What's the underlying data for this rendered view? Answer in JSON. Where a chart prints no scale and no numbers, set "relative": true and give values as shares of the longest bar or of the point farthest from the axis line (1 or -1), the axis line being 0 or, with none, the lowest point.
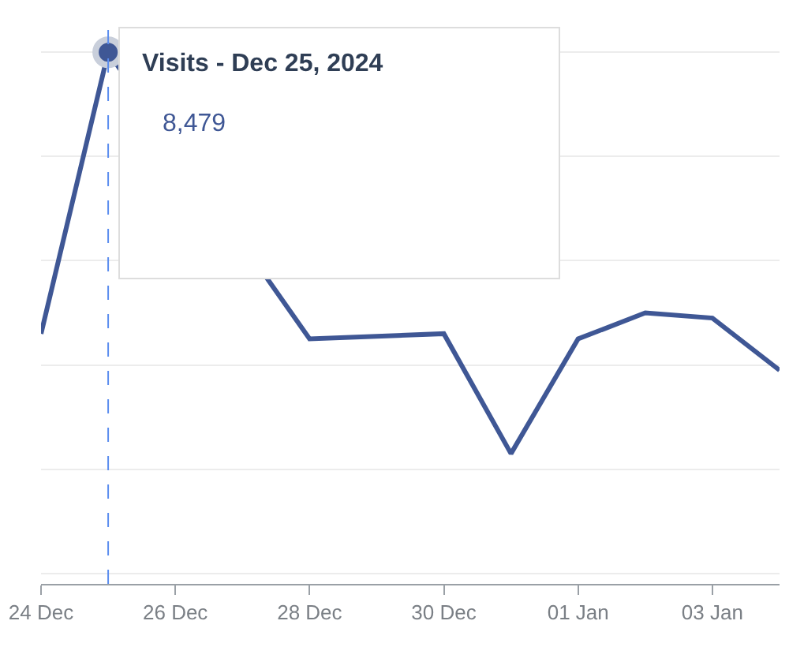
{
  "chart_data": {
    "type": "line",
    "relative": true,
    "x": [
      "2024-12-24",
      "2024-12-25",
      "2024-12-26",
      "2024-12-27",
      "2024-12-28",
      "2024-12-29",
      "2024-12-30",
      "2024-12-31",
      "2025-01-01",
      "2025-01-02",
      "2025-01-03",
      "2025-01-04"
    ],
    "series": [
      {
        "color": "#3f5795",
        "values": [
          0.46,
          1,
          null,
          null,
          0.45,
          null,
          0.46,
          0.23,
          0.45,
          0.5,
          0.49,
          0.39
        ]
      }
    ],
    "xlim": [
      "2024-12-24",
      "2025-01-04"
    ],
    "xticks": [
      {
        "value": "2024-12-24",
        "label": "24 Dec"
      },
      {
        "value": "2024-12-26",
        "label": "26 Dec"
      },
      {
        "value": "2024-12-28",
        "label": "28 Dec"
      },
      {
        "value": "2024-12-30",
        "label": "30 Dec"
      },
      {
        "value": "2025-01-01",
        "label": "01 Jan"
      },
      {
        "value": "2025-01-03",
        "label": "03 Jan"
      }
    ],
    "ref_lines": [
      {
        "axis": "x",
        "value": "2024-12-25",
        "color": "#5b8def",
        "line_style": "dashed"
      }
    ],
    "annotations": [
      "Visits - Dec 25, 2024",
      "8,479"
    ],
    "grid": "y",
    "tick_labels": "x",
    "marker": "none",
    "line_style": "solid",
    "legend": false
  }
}
